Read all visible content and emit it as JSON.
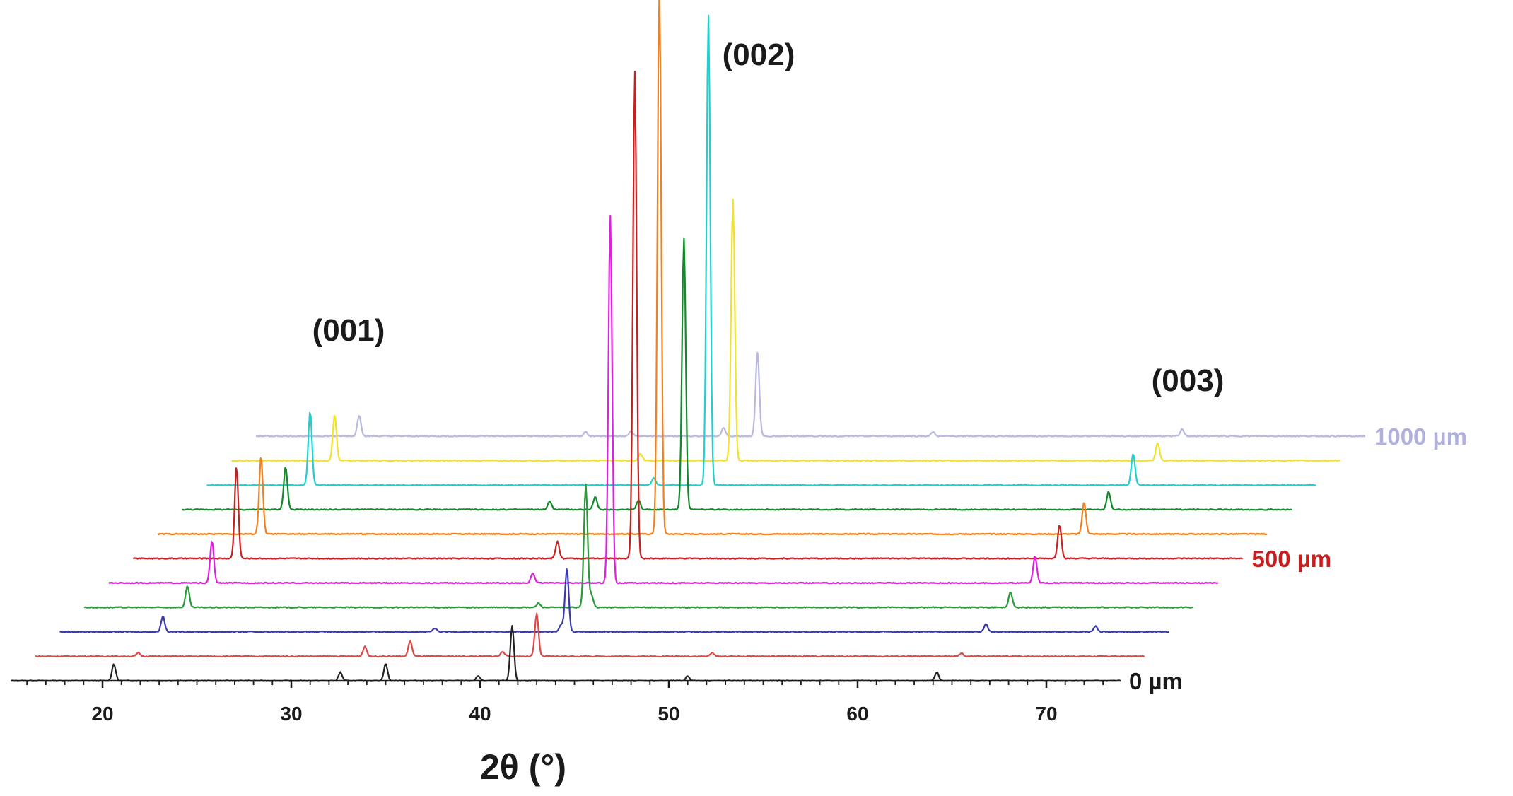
{
  "chart_data": {
    "type": "line",
    "title": "",
    "xlabel": "2θ (°)",
    "ylabel": "",
    "xlim": [
      15,
      75
    ],
    "x_ticks": [
      20,
      30,
      40,
      50,
      60,
      70
    ],
    "grid": false,
    "legend": "none",
    "annotations": [
      {
        "text": "(001)",
        "x": 33.5
      },
      {
        "text": "(002)",
        "x": 54.5
      },
      {
        "text": "(003)",
        "x": 74.0
      }
    ],
    "series": [
      {
        "color": "#222222",
        "end_label": "0 µm",
        "end_label_color": "#1a1a1a",
        "peaks": [
          [
            20.6,
            24
          ],
          [
            32.6,
            12
          ],
          [
            35.0,
            24
          ],
          [
            39.9,
            7
          ],
          [
            41.7,
            78
          ],
          [
            51.0,
            7
          ],
          [
            64.2,
            12
          ]
        ]
      },
      {
        "color": "#e04848",
        "peaks": [
          [
            20.6,
            5
          ],
          [
            32.6,
            14
          ],
          [
            35.0,
            22
          ],
          [
            39.9,
            7
          ],
          [
            41.7,
            60
          ],
          [
            51.0,
            5
          ],
          [
            64.2,
            4
          ]
        ]
      },
      {
        "color": "#3a3ab0",
        "peaks": [
          [
            20.6,
            22
          ],
          [
            35.0,
            5
          ],
          [
            41.7,
            10
          ],
          [
            42.0,
            90
          ],
          [
            64.2,
            12
          ],
          [
            70.0,
            8
          ]
        ]
      },
      {
        "color": "#2a9a3a",
        "peaks": [
          [
            20.6,
            30
          ],
          [
            39.2,
            6
          ],
          [
            41.7,
            175
          ],
          [
            42.0,
            18
          ],
          [
            64.2,
            22
          ]
        ]
      },
      {
        "color": "#e020e0",
        "peaks": [
          [
            20.6,
            60
          ],
          [
            37.6,
            14
          ],
          [
            41.7,
            520
          ],
          [
            64.2,
            38
          ]
        ]
      },
      {
        "color": "#c82020",
        "end_label": "500 µm",
        "end_label_color": "#c81e1e",
        "peaks": [
          [
            20.6,
            130
          ],
          [
            37.6,
            24
          ],
          [
            41.7,
            690
          ],
          [
            64.2,
            48
          ]
        ]
      },
      {
        "color": "#f08020",
        "peaks": [
          [
            20.6,
            110
          ],
          [
            41.7,
            780
          ],
          [
            64.2,
            45
          ]
        ]
      },
      {
        "color": "#108a2a",
        "peaks": [
          [
            20.6,
            60
          ],
          [
            34.6,
            12
          ],
          [
            37.0,
            18
          ],
          [
            39.3,
            14
          ],
          [
            41.7,
            385
          ],
          [
            64.2,
            25
          ]
        ]
      },
      {
        "color": "#20d0d0",
        "peaks": [
          [
            20.6,
            105
          ],
          [
            38.8,
            10
          ],
          [
            41.7,
            665
          ],
          [
            64.2,
            45
          ]
        ]
      },
      {
        "color": "#f2e230",
        "peaks": [
          [
            20.6,
            65
          ],
          [
            36.8,
            10
          ],
          [
            41.7,
            370
          ],
          [
            64.2,
            25
          ]
        ]
      },
      {
        "color": "#b8b8e0",
        "end_label": "1000 µm",
        "end_label_color": "#b0b0dc",
        "peaks": [
          [
            20.6,
            30
          ],
          [
            32.6,
            6
          ],
          [
            35.0,
            8
          ],
          [
            39.9,
            12
          ],
          [
            41.7,
            118
          ],
          [
            51.0,
            6
          ],
          [
            64.2,
            10
          ]
        ]
      }
    ]
  }
}
